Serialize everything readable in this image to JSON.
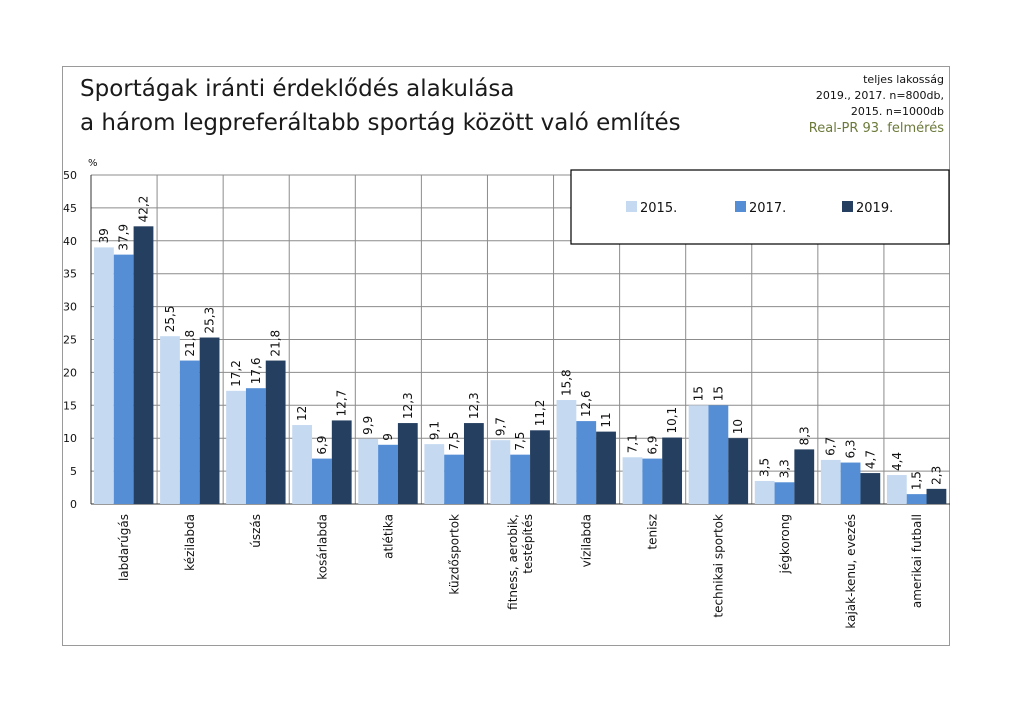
{
  "title_line1": "Sportágak iránti érdeklődés alakulása",
  "title_line2": "a három legpreferáltabb sportág között való említés",
  "note_line1": "teljes lakosság",
  "note_line2": "2019., 2017. n=800db,",
  "note_line3": "2015. n=1000db",
  "source": "Real-PR 93. felmérés",
  "colors": {
    "s2015": "#c5d9f1",
    "s2017": "#558ed5",
    "s2019": "#243f60"
  },
  "chart_data": {
    "type": "bar",
    "title": "Sportágak iránti érdeklődés alakulása a három legpreferáltabb sportág között való említés",
    "ylabel": "%",
    "xlabel": "",
    "ylim": [
      0,
      50
    ],
    "yticks": [
      0,
      5,
      10,
      15,
      20,
      25,
      30,
      35,
      40,
      45,
      50
    ],
    "grid": true,
    "legend": "top-right",
    "categories": [
      [
        "labdarúgás"
      ],
      [
        "kézilabda"
      ],
      [
        "úszás"
      ],
      [
        "kosárlabda"
      ],
      [
        "atlétika"
      ],
      [
        "küzdősportok"
      ],
      [
        "fitness, aerobik,",
        "testépítés"
      ],
      [
        "vízilabda"
      ],
      [
        "tenisz"
      ],
      [
        "technikai sportok"
      ],
      [
        "jégkorong"
      ],
      [
        "kajak-kenu, evezés"
      ],
      [
        "amerikai futball"
      ]
    ],
    "series": [
      {
        "name": "2015.",
        "values": [
          39,
          25.5,
          17.2,
          12,
          9.9,
          9.1,
          9.7,
          15.8,
          7.1,
          15,
          3.5,
          6.7,
          4.4
        ],
        "labels": [
          "39",
          "25,5",
          "17,2",
          "12",
          "9,9",
          "9,1",
          "9,7",
          "15,8",
          "7,1",
          "15",
          "3,5",
          "6,7",
          "4,4"
        ]
      },
      {
        "name": "2017.",
        "values": [
          37.9,
          21.8,
          17.6,
          6.9,
          9,
          7.5,
          7.5,
          12.6,
          6.9,
          15,
          3.3,
          6.3,
          1.5
        ],
        "labels": [
          "37,9",
          "21,8",
          "17,6",
          "6,9",
          "9",
          "7,5",
          "7,5",
          "12,6",
          "6,9",
          "15",
          "3,3",
          "6,3",
          "1,5"
        ]
      },
      {
        "name": "2019.",
        "values": [
          42.2,
          25.3,
          21.8,
          12.7,
          12.3,
          12.3,
          11.2,
          11,
          10.1,
          10,
          8.3,
          4.7,
          2.3
        ],
        "labels": [
          "42,2",
          "25,3",
          "21,8",
          "12,7",
          "12,3",
          "12,3",
          "11,2",
          "11",
          "10,1",
          "10",
          "8,3",
          "4,7",
          "2,3"
        ]
      }
    ]
  }
}
